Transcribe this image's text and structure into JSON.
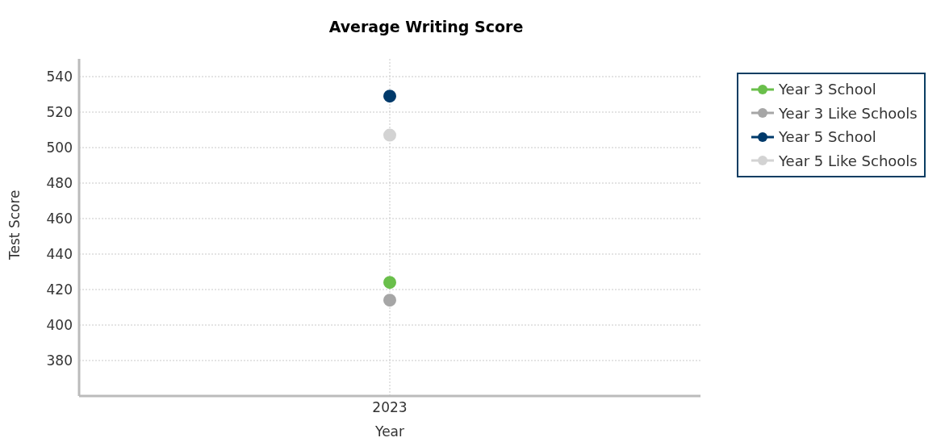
{
  "chart_data": {
    "type": "line",
    "title": "Average Writing Score",
    "xlabel": "Year",
    "ylabel": "Test Score",
    "categories": [
      "2023"
    ],
    "series": [
      {
        "name": "Year 3 School",
        "color": "#6abf4b",
        "values": [
          424
        ]
      },
      {
        "name": "Year 3 Like Schools",
        "color": "#a6a6a6",
        "values": [
          414
        ]
      },
      {
        "name": "Year 5 School",
        "color": "#003a6b",
        "values": [
          529
        ]
      },
      {
        "name": "Year 5 Like Schools",
        "color": "#d3d3d3",
        "values": [
          507
        ]
      }
    ],
    "ylim": [
      360,
      550
    ],
    "yticks": [
      380,
      400,
      420,
      440,
      460,
      480,
      500,
      520,
      540
    ],
    "grid": true,
    "legend": "top right",
    "marker": "circle"
  }
}
